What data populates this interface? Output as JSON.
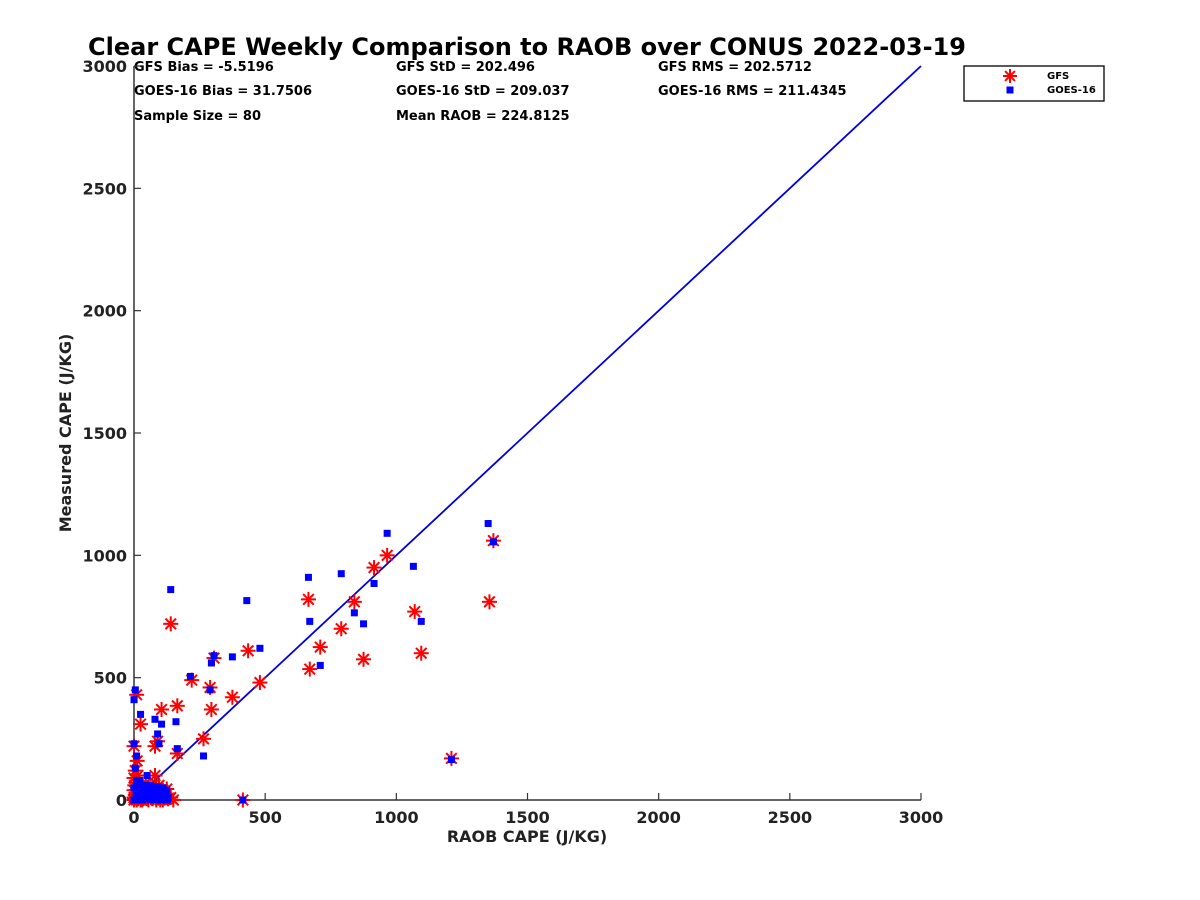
{
  "chart_data": {
    "type": "scatter",
    "title": "Clear CAPE Weekly Comparison to RAOB over CONUS 2022-03-19",
    "xlabel": "RAOB CAPE (J/KG)",
    "ylabel": "Measured CAPE (J/KG)",
    "xlim": [
      0,
      3000
    ],
    "ylim": [
      0,
      3000
    ],
    "xticks": [
      "0",
      "500",
      "1000",
      "1500",
      "2000",
      "2500",
      "3000"
    ],
    "yticks": [
      "0",
      "500",
      "1000",
      "1500",
      "2000",
      "2500",
      "3000"
    ],
    "grid": false,
    "legend_position": "top-right",
    "reference_line": {
      "x": [
        0,
        3000
      ],
      "y": [
        0,
        3000
      ],
      "color": "#0000dd"
    },
    "stats": [
      "GFS Bias = -5.5196",
      "GFS StD = 202.496",
      "GFS RMS = 202.5712",
      "GOES-16 Bias = 31.7506",
      "GOES-16 StD = 209.037",
      "GOES-16 RMS = 211.4345",
      "Sample Size = 80",
      "Mean RAOB = 224.8125"
    ],
    "series": [
      {
        "name": "GFS",
        "color": "#ff0000",
        "marker": "asterisk",
        "points": [
          [
            0,
            0
          ],
          [
            2,
            8
          ],
          [
            5,
            20
          ],
          [
            8,
            40
          ],
          [
            10,
            70
          ],
          [
            0,
            90
          ],
          [
            5,
            120
          ],
          [
            12,
            160
          ],
          [
            0,
            220
          ],
          [
            10,
            430
          ],
          [
            25,
            310
          ],
          [
            15,
            5
          ],
          [
            20,
            15
          ],
          [
            30,
            30
          ],
          [
            40,
            10
          ],
          [
            50,
            50
          ],
          [
            60,
            20
          ],
          [
            70,
            5
          ],
          [
            80,
            100
          ],
          [
            85,
            30
          ],
          [
            90,
            10
          ],
          [
            100,
            0
          ],
          [
            110,
            40
          ],
          [
            120,
            20
          ],
          [
            130,
            5
          ],
          [
            140,
            10
          ],
          [
            30,
            0
          ],
          [
            45,
            70
          ],
          [
            55,
            15
          ],
          [
            65,
            35
          ],
          [
            80,
            220
          ],
          [
            90,
            240
          ],
          [
            105,
            370
          ],
          [
            140,
            720
          ],
          [
            165,
            385
          ],
          [
            165,
            190
          ],
          [
            220,
            490
          ],
          [
            265,
            250
          ],
          [
            290,
            460
          ],
          [
            295,
            370
          ],
          [
            305,
            580
          ],
          [
            375,
            420
          ],
          [
            415,
            0
          ],
          [
            435,
            610
          ],
          [
            480,
            480
          ],
          [
            665,
            820
          ],
          [
            670,
            535
          ],
          [
            710,
            625
          ],
          [
            790,
            700
          ],
          [
            840,
            810
          ],
          [
            875,
            575
          ],
          [
            915,
            950
          ],
          [
            965,
            1000
          ],
          [
            1070,
            770
          ],
          [
            1095,
            600
          ],
          [
            1210,
            170
          ],
          [
            1355,
            810
          ],
          [
            1370,
            1060
          ],
          [
            35,
            5
          ],
          [
            75,
            15
          ],
          [
            95,
            60
          ],
          [
            115,
            25
          ],
          [
            125,
            45
          ],
          [
            20,
            55
          ],
          [
            60,
            45
          ],
          [
            150,
            0
          ],
          [
            0,
            40
          ],
          [
            3,
            60
          ],
          [
            15,
            100
          ],
          [
            25,
            0
          ],
          [
            50,
            5
          ],
          [
            70,
            60
          ],
          [
            85,
            0
          ],
          [
            95,
            35
          ],
          [
            110,
            0
          ],
          [
            40,
            25
          ],
          [
            55,
            0
          ],
          [
            65,
            10
          ],
          [
            10,
            0
          ],
          [
            0,
            10
          ]
        ]
      },
      {
        "name": "GOES-16",
        "color": "#0000ff",
        "marker": "square",
        "points": [
          [
            0,
            410
          ],
          [
            5,
            450
          ],
          [
            10,
            180
          ],
          [
            0,
            230
          ],
          [
            5,
            130
          ],
          [
            10,
            80
          ],
          [
            0,
            50
          ],
          [
            20,
            30
          ],
          [
            30,
            20
          ],
          [
            40,
            5
          ],
          [
            50,
            100
          ],
          [
            60,
            40
          ],
          [
            70,
            10
          ],
          [
            80,
            330
          ],
          [
            90,
            270
          ],
          [
            95,
            230
          ],
          [
            105,
            310
          ],
          [
            110,
            50
          ],
          [
            120,
            30
          ],
          [
            130,
            10
          ],
          [
            140,
            860
          ],
          [
            160,
            320
          ],
          [
            165,
            210
          ],
          [
            215,
            505
          ],
          [
            265,
            180
          ],
          [
            290,
            450
          ],
          [
            295,
            560
          ],
          [
            305,
            590
          ],
          [
            375,
            585
          ],
          [
            415,
            0
          ],
          [
            430,
            815
          ],
          [
            480,
            620
          ],
          [
            665,
            910
          ],
          [
            670,
            730
          ],
          [
            710,
            550
          ],
          [
            790,
            925
          ],
          [
            840,
            765
          ],
          [
            875,
            720
          ],
          [
            915,
            885
          ],
          [
            965,
            1090
          ],
          [
            1065,
            955
          ],
          [
            1095,
            730
          ],
          [
            1210,
            165
          ],
          [
            1350,
            1130
          ],
          [
            1370,
            1055
          ],
          [
            25,
            350
          ],
          [
            15,
            0
          ],
          [
            35,
            60
          ],
          [
            45,
            15
          ],
          [
            55,
            25
          ],
          [
            65,
            0
          ],
          [
            75,
            50
          ],
          [
            85,
            5
          ],
          [
            100,
            20
          ],
          [
            115,
            0
          ],
          [
            125,
            40
          ],
          [
            0,
            0
          ],
          [
            8,
            20
          ],
          [
            18,
            10
          ],
          [
            28,
            0
          ],
          [
            38,
            45
          ],
          [
            48,
            5
          ],
          [
            58,
            30
          ],
          [
            68,
            15
          ],
          [
            78,
            0
          ],
          [
            88,
            55
          ],
          [
            98,
            10
          ],
          [
            108,
            35
          ],
          [
            118,
            15
          ],
          [
            128,
            0
          ],
          [
            12,
            60
          ],
          [
            22,
            80
          ],
          [
            32,
            0
          ],
          [
            42,
            30
          ],
          [
            52,
            10
          ],
          [
            62,
            60
          ],
          [
            72,
            20
          ],
          [
            82,
            40
          ],
          [
            92,
            0
          ],
          [
            102,
            0
          ]
        ]
      }
    ]
  }
}
